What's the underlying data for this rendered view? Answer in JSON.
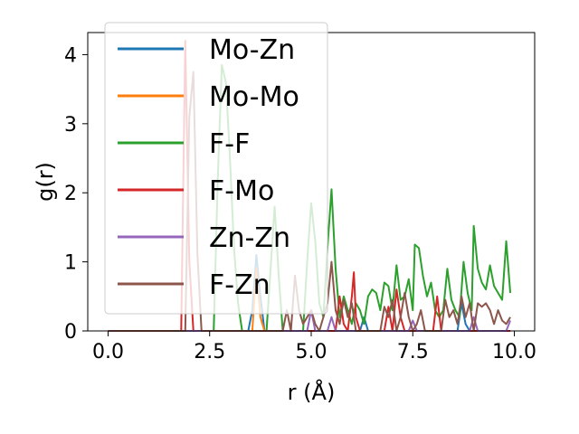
{
  "chart_data": {
    "type": "line",
    "title": "",
    "xlabel": "r (Å)",
    "ylabel": "g(r)",
    "xlim": [
      -0.5,
      10.5
    ],
    "ylim": [
      0,
      4.32
    ],
    "xticks": [
      0.0,
      2.5,
      5.0,
      7.5,
      10.0
    ],
    "xtick_labels": [
      "0.0",
      "2.5",
      "5.0",
      "7.5",
      "10.0"
    ],
    "yticks": [
      0,
      1,
      2,
      3,
      4
    ],
    "ytick_labels": [
      "0",
      "1",
      "2",
      "3",
      "4"
    ],
    "grid": false,
    "legend_position": "top-left",
    "series": [
      {
        "name": "Mo-Zn",
        "color": "#1f77b4",
        "points": [
          [
            0,
            0
          ],
          [
            3.45,
            0
          ],
          [
            3.55,
            0.3
          ],
          [
            3.65,
            1.1
          ],
          [
            3.75,
            0.5
          ],
          [
            3.85,
            0
          ],
          [
            6.2,
            0
          ],
          [
            6.3,
            0.2
          ],
          [
            6.4,
            0
          ],
          [
            8.6,
            0
          ],
          [
            8.7,
            0.4
          ],
          [
            8.8,
            0.1
          ],
          [
            8.9,
            0
          ],
          [
            9.9,
            0
          ]
        ]
      },
      {
        "name": "Mo-Mo",
        "color": "#ff7f0e",
        "points": [
          [
            0,
            0
          ],
          [
            3.55,
            0
          ],
          [
            3.65,
            0.9
          ],
          [
            3.75,
            0.2
          ],
          [
            3.85,
            0
          ],
          [
            9.9,
            0
          ]
        ]
      },
      {
        "name": "F-F",
        "color": "#2ca02c",
        "points": [
          [
            0,
            0
          ],
          [
            2.6,
            0
          ],
          [
            2.7,
            2.2
          ],
          [
            2.8,
            3.85
          ],
          [
            2.9,
            3.6
          ],
          [
            3.0,
            2.5
          ],
          [
            3.1,
            1.2
          ],
          [
            3.2,
            0.4
          ],
          [
            3.3,
            0
          ],
          [
            3.9,
            0
          ],
          [
            4.0,
            0.9
          ],
          [
            4.1,
            1.8
          ],
          [
            4.2,
            0.8
          ],
          [
            4.3,
            0
          ],
          [
            4.8,
            0
          ],
          [
            4.9,
            1.0
          ],
          [
            5.0,
            1.85
          ],
          [
            5.1,
            1.3
          ],
          [
            5.2,
            0.4
          ],
          [
            5.3,
            0.2
          ],
          [
            5.4,
            1.2
          ],
          [
            5.5,
            2.05
          ],
          [
            5.6,
            0.9
          ],
          [
            5.7,
            0.2
          ],
          [
            5.8,
            0.5
          ],
          [
            5.9,
            0.3
          ],
          [
            6.0,
            0.1
          ],
          [
            6.1,
            0.4
          ],
          [
            6.2,
            0.3
          ],
          [
            6.3,
            0.1
          ],
          [
            6.4,
            0.5
          ],
          [
            6.5,
            0.6
          ],
          [
            6.6,
            0.55
          ],
          [
            6.7,
            0.3
          ],
          [
            6.8,
            0.7
          ],
          [
            6.9,
            0.65
          ],
          [
            7.0,
            0.3
          ],
          [
            7.1,
            0.95
          ],
          [
            7.2,
            0.45
          ],
          [
            7.3,
            0.5
          ],
          [
            7.4,
            0.75
          ],
          [
            7.5,
            0.3
          ],
          [
            7.55,
            1.25
          ],
          [
            7.65,
            1.2
          ],
          [
            7.75,
            0.8
          ],
          [
            7.85,
            0.5
          ],
          [
            7.95,
            0.7
          ],
          [
            8.05,
            0.3
          ],
          [
            8.15,
            0.2
          ],
          [
            8.25,
            0.3
          ],
          [
            8.35,
            0.9
          ],
          [
            8.45,
            0.45
          ],
          [
            8.55,
            0.3
          ],
          [
            8.65,
            0.2
          ],
          [
            8.75,
            1.0
          ],
          [
            8.85,
            0.55
          ],
          [
            8.95,
            0.3
          ],
          [
            9.0,
            1.52
          ],
          [
            9.1,
            0.9
          ],
          [
            9.2,
            0.7
          ],
          [
            9.3,
            0.6
          ],
          [
            9.4,
            0.95
          ],
          [
            9.5,
            0.65
          ],
          [
            9.6,
            0.55
          ],
          [
            9.7,
            0.45
          ],
          [
            9.8,
            1.3
          ],
          [
            9.9,
            0.55
          ]
        ]
      },
      {
        "name": "F-Mo",
        "color": "#d62728",
        "points": [
          [
            0,
            0
          ],
          [
            1.8,
            0
          ],
          [
            1.9,
            4.2
          ],
          [
            2.0,
            1.0
          ],
          [
            2.1,
            0
          ],
          [
            5.6,
            0
          ],
          [
            5.7,
            0.5
          ],
          [
            5.8,
            0.1
          ],
          [
            5.9,
            0
          ],
          [
            6.0,
            0.5
          ],
          [
            6.05,
            0.85
          ],
          [
            6.1,
            0.2
          ],
          [
            6.2,
            0
          ],
          [
            6.8,
            0
          ],
          [
            6.9,
            0.35
          ],
          [
            7.0,
            0
          ],
          [
            7.1,
            0.6
          ],
          [
            7.2,
            0.2
          ],
          [
            7.3,
            0
          ],
          [
            8.0,
            0
          ],
          [
            8.1,
            0.5
          ],
          [
            8.2,
            0
          ],
          [
            9.9,
            0
          ]
        ]
      },
      {
        "name": "Zn-Zn",
        "color": "#9467bd",
        "points": [
          [
            0,
            0
          ],
          [
            4.9,
            0
          ],
          [
            5.0,
            0.3
          ],
          [
            5.1,
            0
          ],
          [
            5.4,
            0
          ],
          [
            5.5,
            0.2
          ],
          [
            5.6,
            0
          ],
          [
            7.4,
            0
          ],
          [
            7.5,
            0.15
          ],
          [
            7.6,
            0
          ],
          [
            8.9,
            0
          ],
          [
            9.0,
            0.2
          ],
          [
            9.1,
            0
          ],
          [
            9.8,
            0
          ],
          [
            9.9,
            0.15
          ]
        ]
      },
      {
        "name": "F-Zn",
        "color": "#8c564b",
        "points": [
          [
            0,
            0
          ],
          [
            1.9,
            0
          ],
          [
            2.0,
            3.1
          ],
          [
            2.1,
            3.75
          ],
          [
            2.2,
            1.1
          ],
          [
            2.3,
            0
          ],
          [
            4.3,
            0
          ],
          [
            4.4,
            0.3
          ],
          [
            4.5,
            0
          ],
          [
            4.6,
            0.8
          ],
          [
            4.7,
            0.3
          ],
          [
            4.8,
            0.1
          ],
          [
            5.0,
            0.3
          ],
          [
            5.1,
            0.1
          ],
          [
            5.2,
            0
          ],
          [
            5.4,
            0.4
          ],
          [
            5.5,
            1.0
          ],
          [
            5.6,
            0.3
          ],
          [
            5.7,
            0.1
          ],
          [
            5.8,
            0.45
          ],
          [
            5.9,
            0.2
          ],
          [
            6.0,
            0.4
          ],
          [
            6.1,
            0
          ],
          [
            6.7,
            0
          ],
          [
            6.8,
            0.35
          ],
          [
            6.9,
            0.2
          ],
          [
            7.0,
            0.45
          ],
          [
            7.1,
            0
          ],
          [
            7.2,
            0.2
          ],
          [
            7.3,
            0.55
          ],
          [
            7.4,
            0.2
          ],
          [
            7.5,
            0
          ],
          [
            7.6,
            0.1
          ],
          [
            7.7,
            0.3
          ],
          [
            7.8,
            0
          ],
          [
            8.2,
            0
          ],
          [
            8.3,
            0.45
          ],
          [
            8.4,
            0.2
          ],
          [
            8.5,
            0.3
          ],
          [
            8.6,
            0.1
          ],
          [
            8.7,
            0.5
          ],
          [
            8.8,
            0.2
          ],
          [
            8.9,
            0.4
          ],
          [
            9.0,
            0
          ],
          [
            9.1,
            0.4
          ],
          [
            9.2,
            0.35
          ],
          [
            9.3,
            0.4
          ],
          [
            9.4,
            0.3
          ],
          [
            9.5,
            0.1
          ],
          [
            9.6,
            0.3
          ],
          [
            9.7,
            0.15
          ],
          [
            9.8,
            0.1
          ],
          [
            9.9,
            0.2
          ]
        ]
      }
    ]
  }
}
